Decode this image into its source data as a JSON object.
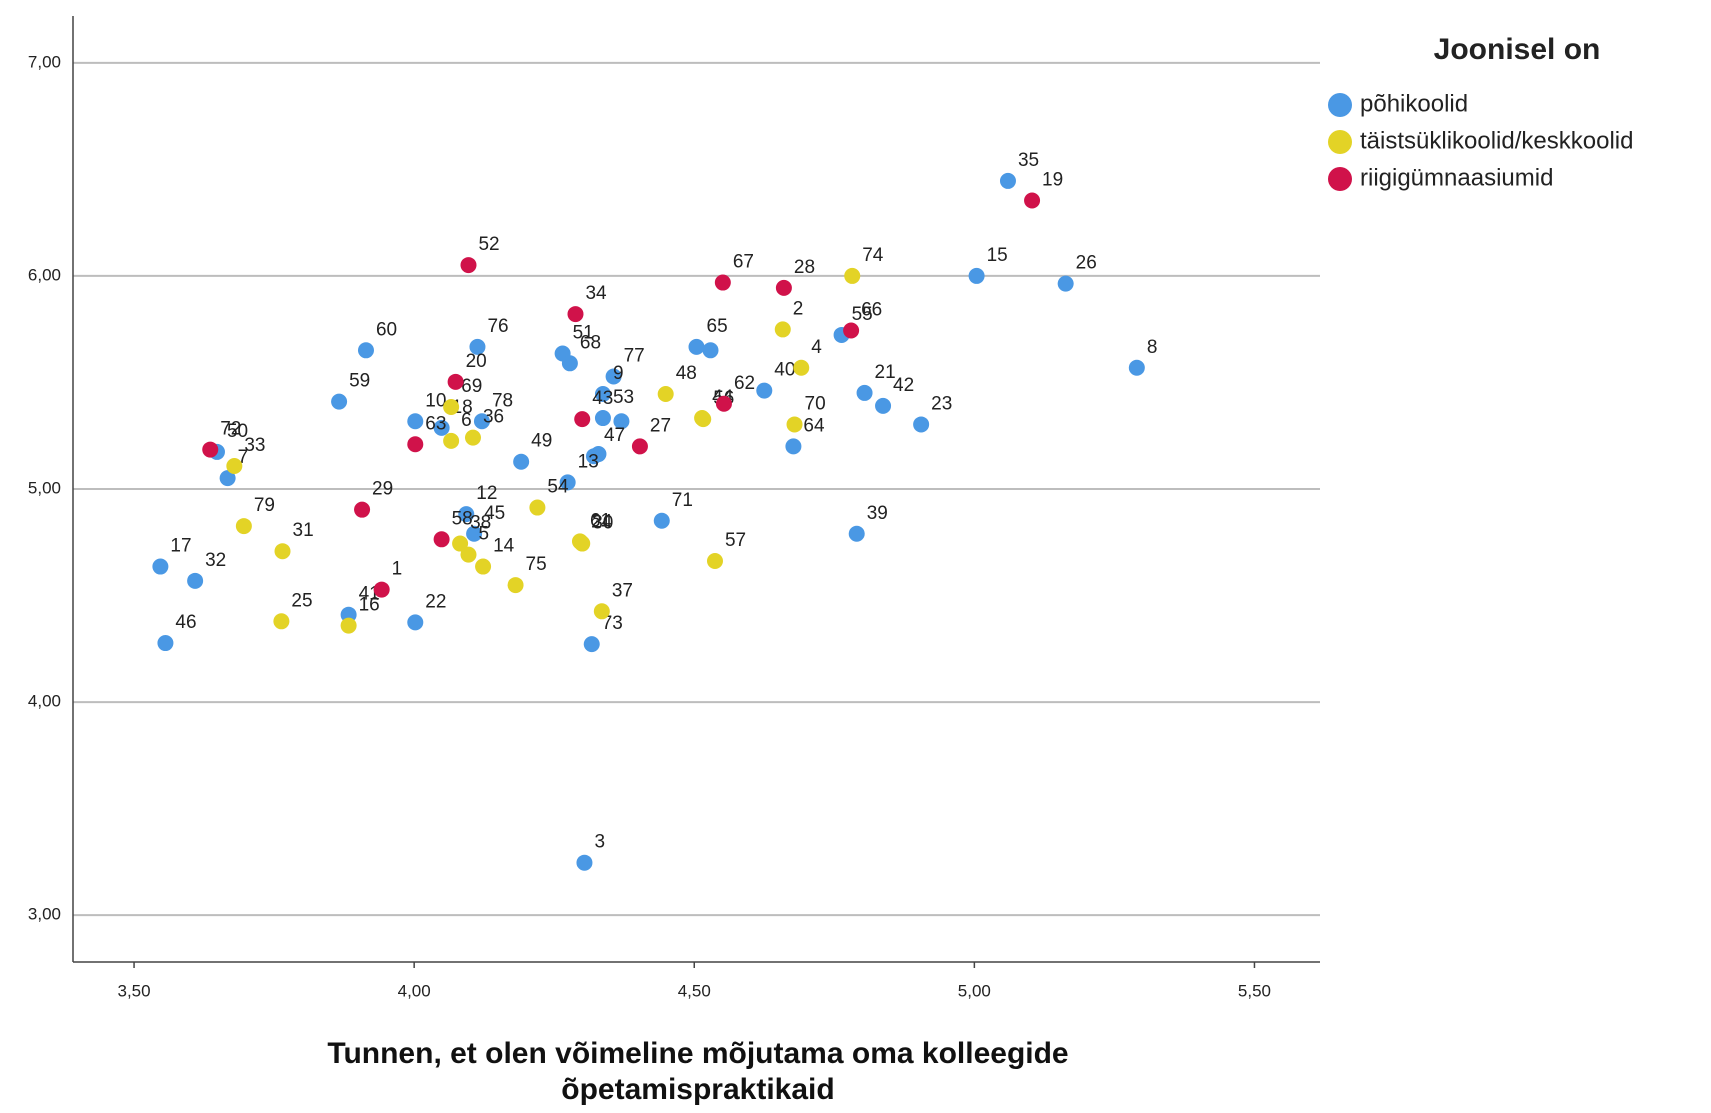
{
  "chart_data": {
    "type": "scatter",
    "x_label": "Tunnen, et olen võimeline mõjutama oma kolleegide õpetamispraktikaid",
    "legend_title": "Joonisel on",
    "legend": "right",
    "grid": true,
    "xlim": [
      3.391,
      5.617
    ],
    "ylim": [
      2.78,
      7.22
    ],
    "xticks": [
      {
        "value": 3.5,
        "label": "3,50"
      },
      {
        "value": 4,
        "label": "4,00"
      },
      {
        "value": 4.5,
        "label": "4,50"
      },
      {
        "value": 5,
        "label": "5,00"
      },
      {
        "value": 5.5,
        "label": "5,50"
      }
    ],
    "yticks": [
      {
        "value": 3,
        "label": "3,00"
      },
      {
        "value": 4,
        "label": "4,00"
      },
      {
        "value": 5,
        "label": "5,00"
      },
      {
        "value": 6,
        "label": "6,00"
      },
      {
        "value": 7,
        "label": "7,00"
      }
    ],
    "series": [
      {
        "name": "põhikoolid",
        "color": "#4a98e4",
        "labels": [
          "35",
          "15",
          "26",
          "8",
          "55",
          "65",
          null,
          "60",
          "76",
          "51",
          "68",
          "77",
          "59",
          "18",
          "9",
          "53",
          null,
          "21",
          "42",
          "10",
          "78",
          "40",
          "23",
          "50",
          "49",
          "47",
          null,
          "64",
          "13",
          "71",
          "7",
          "12",
          "45",
          "39",
          "17",
          "32",
          "22",
          "46",
          "41",
          "73",
          "3"
        ],
        "x": [
          5.06,
          5.004,
          5.163,
          5.29,
          4.763,
          4.504,
          4.529,
          3.914,
          4.113,
          4.265,
          4.278,
          4.356,
          3.866,
          4.049,
          4.337,
          4.337,
          4.37,
          4.804,
          4.837,
          4.002,
          4.121,
          4.625,
          4.905,
          3.648,
          4.191,
          4.321,
          4.329,
          4.677,
          4.274,
          4.442,
          3.667,
          4.093,
          4.107,
          4.79,
          3.547,
          3.609,
          4.002,
          3.556,
          3.883,
          4.317,
          4.304
        ],
        "values": [
          6.446,
          6.0,
          5.964,
          5.569,
          5.723,
          5.667,
          5.651,
          5.651,
          5.667,
          5.636,
          5.59,
          5.528,
          5.41,
          5.287,
          5.446,
          5.333,
          5.318,
          5.451,
          5.39,
          5.318,
          5.318,
          5.462,
          5.303,
          5.174,
          5.128,
          5.154,
          5.164,
          5.2,
          5.031,
          4.851,
          5.051,
          4.882,
          4.79,
          4.79,
          4.636,
          4.569,
          4.374,
          4.277,
          4.41,
          4.272,
          3.246
        ]
      },
      {
        "name": "täistsüklikoolid/keskkoolid",
        "color": "#e3d326",
        "labels": [
          "74",
          "2",
          "48",
          "4",
          "44",
          "56",
          "69",
          "70",
          "36",
          "6",
          "33",
          "54",
          "79",
          "31",
          "61",
          "24",
          "30",
          "57",
          "14",
          "38",
          "5",
          "75",
          "37",
          "25",
          "16"
        ],
        "x": [
          4.782,
          4.658,
          4.449,
          4.691,
          4.514,
          4.516,
          4.066,
          4.679,
          4.105,
          4.066,
          3.679,
          4.22,
          3.696,
          3.765,
          4.296,
          4.298,
          4.3,
          4.537,
          4.123,
          4.082,
          4.097,
          4.181,
          4.335,
          3.763,
          3.883
        ],
        "values": [
          6.0,
          5.749,
          5.446,
          5.569,
          5.333,
          5.328,
          5.385,
          5.303,
          5.241,
          5.226,
          5.108,
          4.913,
          4.826,
          4.708,
          4.754,
          4.749,
          4.744,
          4.662,
          4.636,
          4.744,
          4.692,
          4.549,
          4.426,
          4.379,
          4.359
        ]
      },
      {
        "name": "riigigümnaasiumid",
        "color": "#d0124a",
        "labels": [
          "19",
          "52",
          "67",
          "28",
          "66",
          "34",
          "62",
          "20",
          "43",
          "72",
          "27",
          "63",
          "29",
          "58",
          "1"
        ],
        "x": [
          5.103,
          4.097,
          4.551,
          4.66,
          4.78,
          4.288,
          4.553,
          4.074,
          4.3,
          3.636,
          4.403,
          4.002,
          3.907,
          4.049,
          3.942
        ],
        "values": [
          6.354,
          6.051,
          5.969,
          5.944,
          5.744,
          5.821,
          5.4,
          5.503,
          5.328,
          5.185,
          5.2,
          5.21,
          4.903,
          4.764,
          4.528
        ]
      }
    ]
  }
}
